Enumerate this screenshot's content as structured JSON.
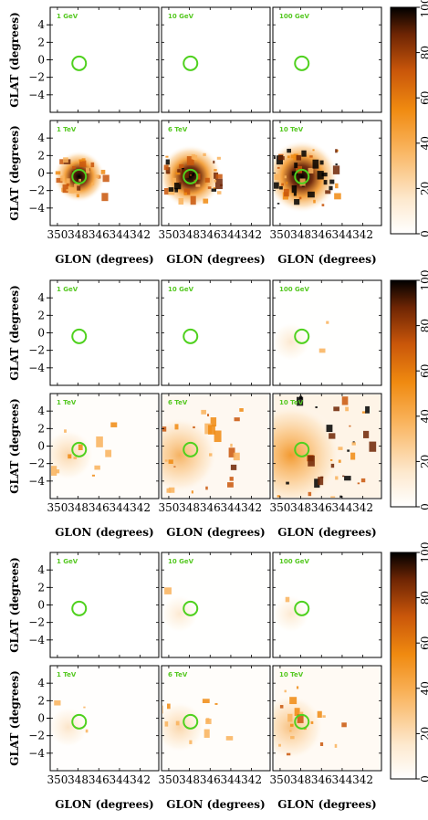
{
  "figure": {
    "energies_top": [
      "1 GeV",
      "10 GeV",
      "100 GeV"
    ],
    "energies_bottom": [
      "1 TeV",
      "6 TeV",
      "10 TeV"
    ],
    "glat_label": "GLAT (degrees)",
    "glon_label": "GLON (degrees)",
    "glat_ticks": [
      "4",
      "2",
      "0",
      "−2",
      "−4"
    ],
    "glon_ticks": [
      "350",
      "348",
      "346",
      "344",
      "342"
    ],
    "colorbar_ticks": [
      "100",
      "80",
      "60",
      "40",
      "20",
      "0"
    ],
    "colors": {
      "circle": "#4fd11e",
      "label": "#55c821",
      "cmap": [
        "#ffffff",
        "#fde9cf",
        "#f9b25a",
        "#f08a10",
        "#c9560a",
        "#6e2504",
        "#000000"
      ]
    },
    "intensity": {
      "group_1": [
        [
          0,
          0,
          0
        ],
        [
          0.55,
          0.8,
          1.0
        ]
      ],
      "group_2": [
        [
          0,
          0,
          0.03
        ],
        [
          0.2,
          0.55,
          0.9
        ]
      ],
      "group_3": [
        [
          0,
          0.02,
          0.02
        ],
        [
          0.06,
          0.2,
          0.4
        ]
      ]
    }
  }
}
